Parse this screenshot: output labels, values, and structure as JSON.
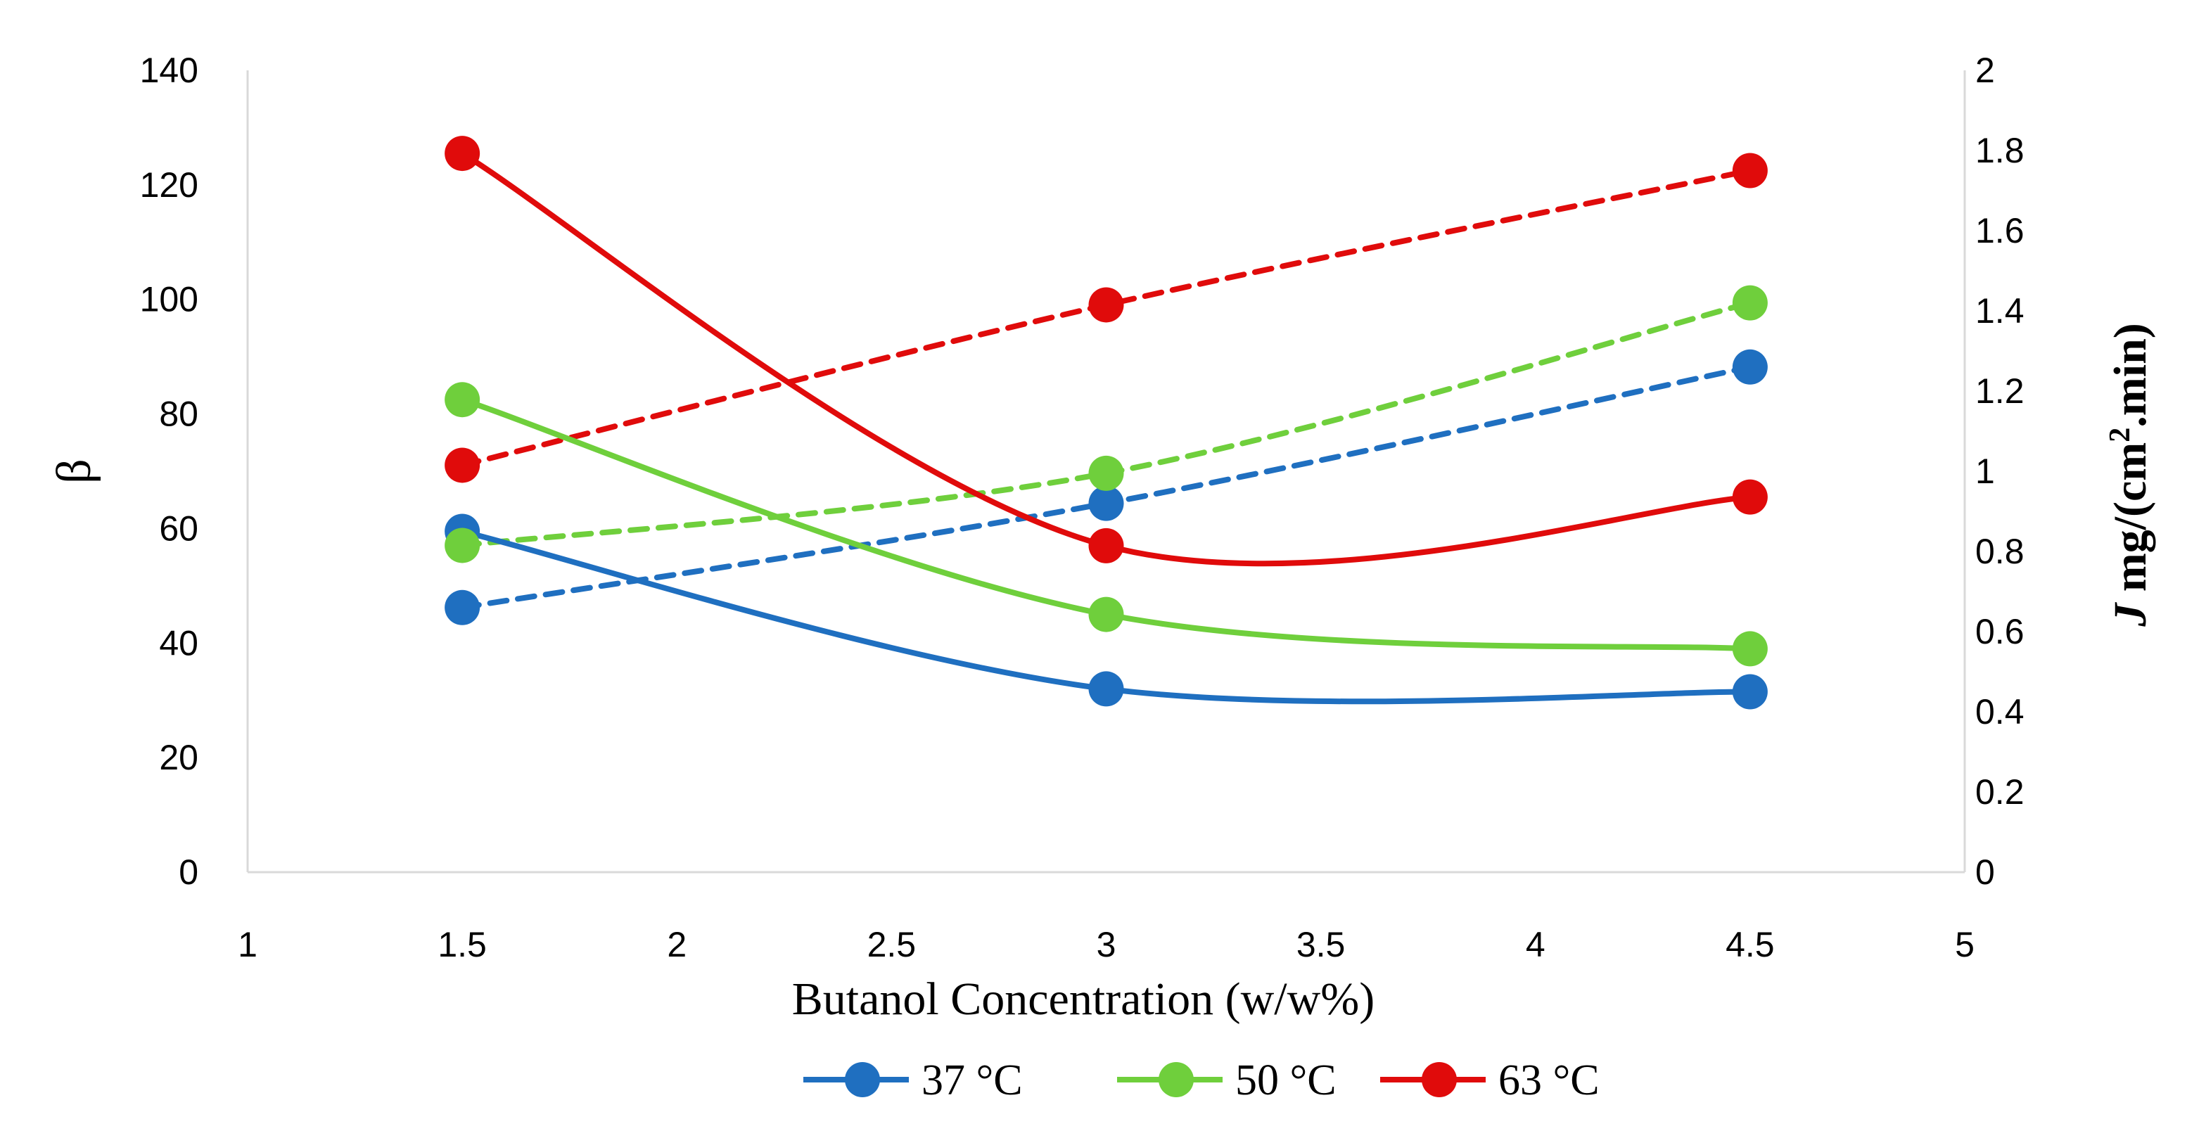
{
  "chart_data": {
    "type": "line",
    "title": "",
    "xlabel": "Butanol Concentration (w/w%)",
    "ylabel": "β",
    "y2label": {
      "symbol": "J",
      "prefix": " mg/(cm",
      "superscript": "2",
      "suffix": ".min)"
    },
    "xlim": [
      1,
      5
    ],
    "ylim": [
      0,
      140
    ],
    "y2lim": [
      0,
      2
    ],
    "x_ticks": [
      "1",
      "1.5",
      "2",
      "2.5",
      "3",
      "3.5",
      "4",
      "4.5",
      "5"
    ],
    "y_ticks": [
      "0",
      "20",
      "40",
      "60",
      "80",
      "100",
      "120",
      "140"
    ],
    "y2_ticks": [
      "0",
      "0.2",
      "0.4",
      "0.6",
      "0.8",
      "1",
      "1.2",
      "1.4",
      "1.6",
      "1.8",
      "2"
    ],
    "grid": false,
    "legend_position": "bottom",
    "x": [
      1.5,
      3,
      4.5
    ],
    "series": [
      {
        "name": "37 °C",
        "axis": "left",
        "style": "solid",
        "color": "#1f6fc0",
        "values": [
          59.5,
          32,
          31.5
        ]
      },
      {
        "name": "50 °C",
        "axis": "left",
        "style": "solid",
        "color": "#6fcf3c",
        "values": [
          82.5,
          45,
          39
        ]
      },
      {
        "name": "63 °C",
        "axis": "left",
        "style": "solid",
        "color": "#e00b0b",
        "values": [
          125.5,
          57,
          65.5
        ]
      },
      {
        "name": "37 °C J",
        "axis": "right",
        "style": "dashed",
        "color": "#1f6fc0",
        "values": [
          0.66,
          0.92,
          1.26
        ]
      },
      {
        "name": "50 °C J",
        "axis": "right",
        "style": "dashed",
        "color": "#6fcf3c",
        "values": [
          0.815,
          0.995,
          1.42
        ]
      },
      {
        "name": "63 °C J",
        "axis": "right",
        "style": "dashed",
        "color": "#e00b0b",
        "values": [
          1.015,
          1.415,
          1.75
        ]
      }
    ],
    "legend": [
      "37 °C",
      "50 °C",
      "63 °C"
    ]
  }
}
